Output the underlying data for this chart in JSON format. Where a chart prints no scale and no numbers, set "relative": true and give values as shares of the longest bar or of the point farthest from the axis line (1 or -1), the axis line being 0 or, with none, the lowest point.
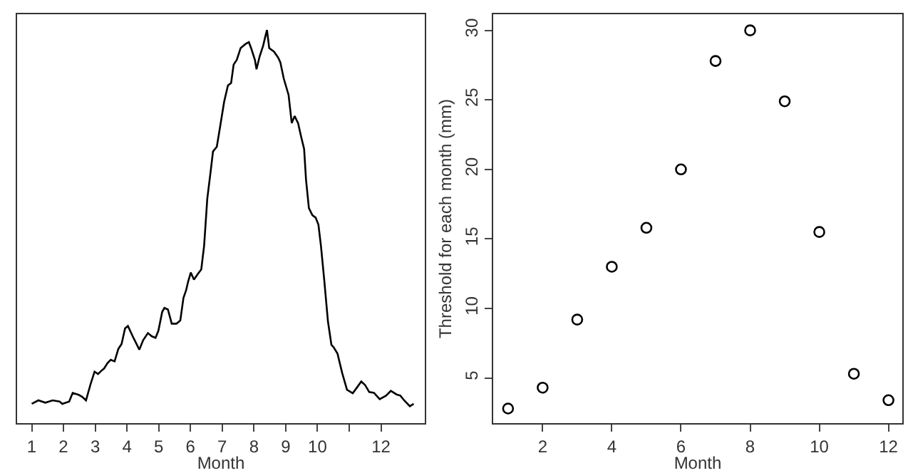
{
  "chart_data": [
    {
      "type": "line",
      "relative": true,
      "xlabel": "Month",
      "tick_labels": "x",
      "color": "#000000",
      "xlim": [
        0.54,
        13.38
      ],
      "xticks": [
        1,
        2,
        3,
        4,
        5,
        6,
        7,
        8,
        9,
        10,
        {
          "value": 11,
          "label": null
        },
        12
      ],
      "x": [
        1.0,
        1.21,
        1.43,
        1.66,
        1.88,
        1.96,
        2.18,
        2.29,
        2.48,
        2.59,
        2.71,
        2.86,
        2.98,
        3.09,
        3.19,
        3.28,
        3.39,
        3.49,
        3.61,
        3.73,
        3.83,
        3.94,
        4.03,
        4.18,
        4.39,
        4.51,
        4.66,
        4.78,
        4.9,
        4.99,
        5.11,
        5.18,
        5.29,
        5.41,
        5.56,
        5.68,
        5.78,
        5.86,
        5.93,
        6.01,
        6.11,
        6.23,
        6.34,
        6.43,
        6.53,
        6.64,
        6.71,
        6.83,
        6.94,
        7.06,
        7.18,
        7.28,
        7.36,
        7.46,
        7.58,
        7.73,
        7.84,
        7.91,
        8.03,
        8.08,
        8.18,
        8.29,
        8.36,
        8.41,
        8.48,
        8.63,
        8.76,
        8.83,
        8.94,
        9.09,
        9.19,
        9.28,
        9.39,
        9.49,
        9.58,
        9.64,
        9.73,
        9.84,
        9.94,
        10.03,
        10.11,
        10.21,
        10.33,
        10.44,
        10.51,
        10.63,
        10.78,
        10.93,
        11.11,
        11.23,
        11.38,
        11.5,
        11.63,
        11.78,
        11.96,
        12.16,
        12.31,
        12.49,
        12.61,
        12.73,
        12.91,
        13.03
      ],
      "values": [
        0.049,
        0.058,
        0.052,
        0.058,
        0.055,
        0.049,
        0.055,
        0.077,
        0.072,
        0.067,
        0.058,
        0.101,
        0.131,
        0.125,
        0.133,
        0.139,
        0.153,
        0.161,
        0.157,
        0.189,
        0.201,
        0.241,
        0.247,
        0.221,
        0.187,
        0.211,
        0.229,
        0.221,
        0.217,
        0.235,
        0.283,
        0.293,
        0.289,
        0.253,
        0.253,
        0.261,
        0.319,
        0.337,
        0.361,
        0.383,
        0.365,
        0.379,
        0.391,
        0.451,
        0.571,
        0.643,
        0.691,
        0.703,
        0.757,
        0.817,
        0.859,
        0.865,
        0.912,
        0.924,
        0.954,
        0.964,
        0.969,
        0.954,
        0.924,
        0.9,
        0.933,
        0.96,
        0.984,
        1.0,
        0.954,
        0.945,
        0.93,
        0.918,
        0.876,
        0.835,
        0.763,
        0.781,
        0.763,
        0.727,
        0.697,
        0.619,
        0.547,
        0.529,
        0.523,
        0.505,
        0.451,
        0.367,
        0.259,
        0.199,
        0.193,
        0.177,
        0.127,
        0.085,
        0.076,
        0.089,
        0.106,
        0.097,
        0.079,
        0.077,
        0.061,
        0.07,
        0.082,
        0.073,
        0.07,
        0.058,
        0.043,
        0.049
      ]
    },
    {
      "type": "scatter",
      "marker": "circle",
      "color": "#000000",
      "xlabel": "Month",
      "ylabel": "Threshold for each month (mm)",
      "xlim": [
        0.57,
        12.4
      ],
      "ylim": [
        1.75,
        31.16
      ],
      "xticks": [
        2,
        4,
        6,
        8,
        10,
        12
      ],
      "yticks": [
        5,
        10,
        15,
        20,
        25,
        30
      ],
      "x": [
        1,
        2,
        3,
        4,
        5,
        6,
        7,
        8,
        9,
        10,
        11,
        12
      ],
      "values": [
        2.8,
        4.3,
        9.2,
        13.0,
        15.8,
        20.0,
        27.8,
        30.0,
        24.9,
        15.5,
        5.3,
        3.4
      ]
    }
  ]
}
